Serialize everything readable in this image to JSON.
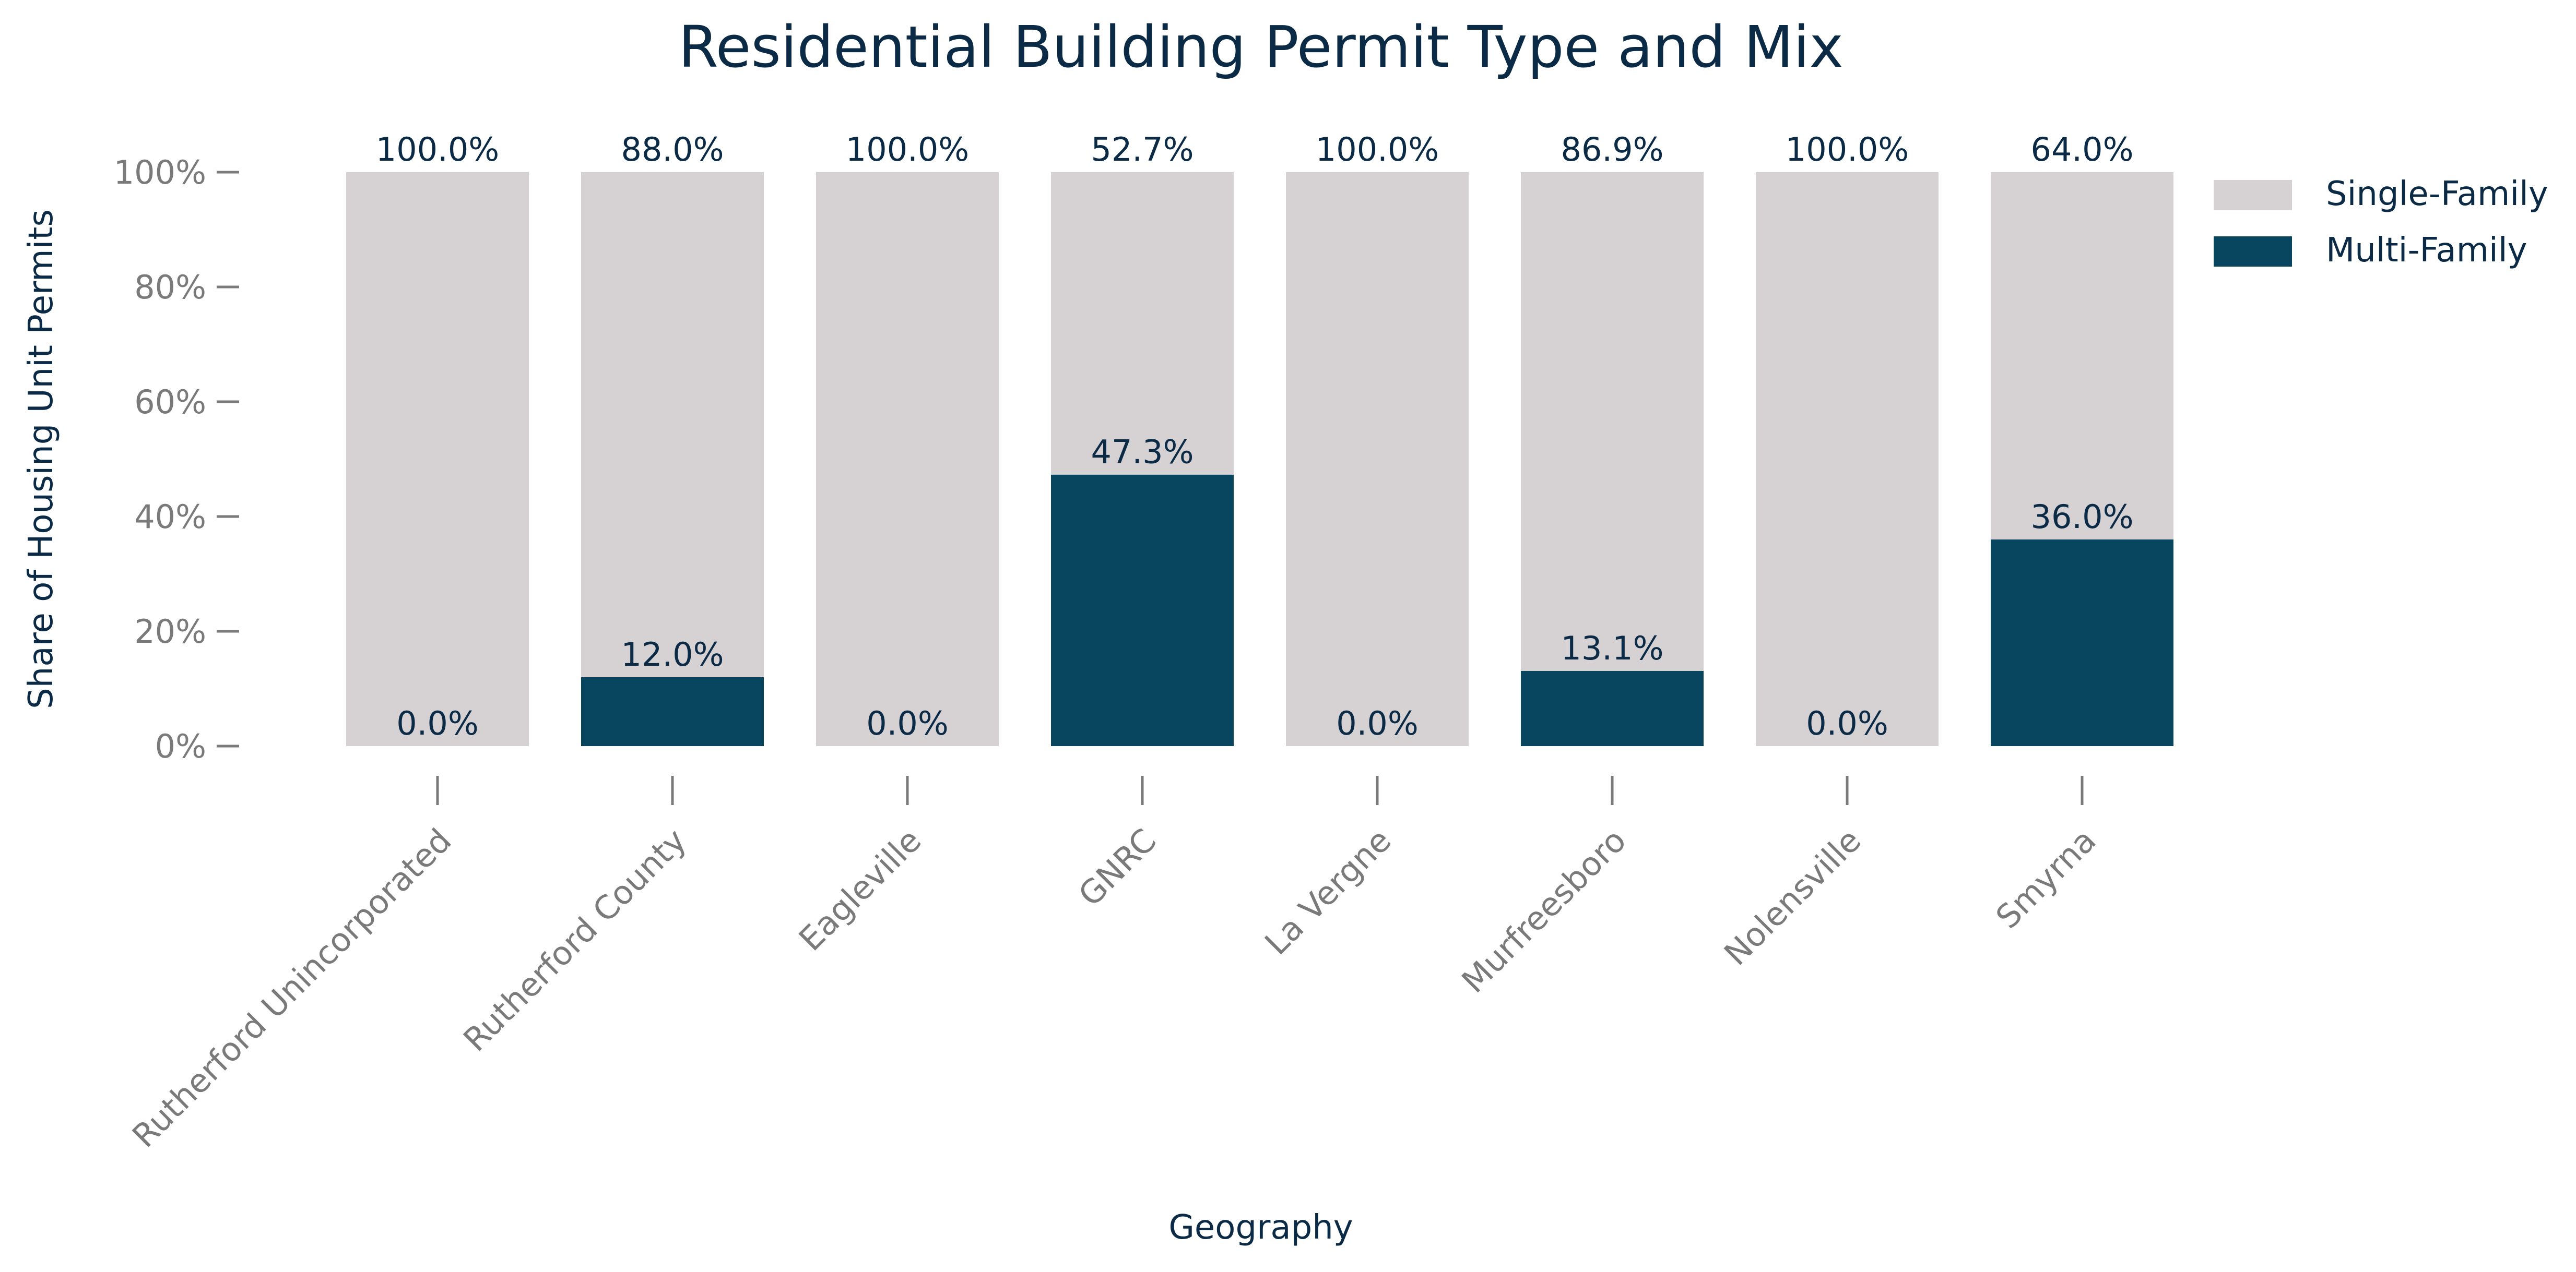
{
  "chart_data": {
    "type": "bar",
    "stacked": true,
    "title": "Residential Building Permit Type and Mix",
    "xlabel": "Geography",
    "ylabel": "Share of Housing Unit Permits",
    "ylim": [
      0,
      100
    ],
    "y_ticks": [
      "0%",
      "20%",
      "40%",
      "60%",
      "80%",
      "100%"
    ],
    "y_tick_values": [
      0,
      20,
      40,
      60,
      80,
      100
    ],
    "grid": false,
    "legend_position": "top-right",
    "categories": [
      "Rutherford Unincorporated",
      "Rutherford County",
      "Eagleville",
      "GNRC",
      "La Vergne",
      "Murfreesboro",
      "Nolensville",
      "Smyrna"
    ],
    "series": [
      {
        "name": "Multi-Family",
        "color": "#08455f",
        "values": [
          0.0,
          12.0,
          0.0,
          47.3,
          0.0,
          13.1,
          0.0,
          36.0
        ],
        "labels": [
          "0.0%",
          "12.0%",
          "0.0%",
          "47.3%",
          "0.0%",
          "13.1%",
          "0.0%",
          "36.0%"
        ]
      },
      {
        "name": "Single-Family",
        "color": "#d6d1d3",
        "values": [
          100.0,
          88.0,
          100.0,
          52.7,
          100.0,
          86.9,
          100.0,
          64.0
        ],
        "labels": [
          "100.0%",
          "88.0%",
          "100.0%",
          "52.7%",
          "100.0%",
          "86.9%",
          "100.0%",
          "64.0%"
        ]
      }
    ],
    "legend": [
      {
        "name": "Single-Family",
        "color": "#d6d1d3"
      },
      {
        "name": "Multi-Family",
        "color": "#08455f"
      }
    ]
  }
}
